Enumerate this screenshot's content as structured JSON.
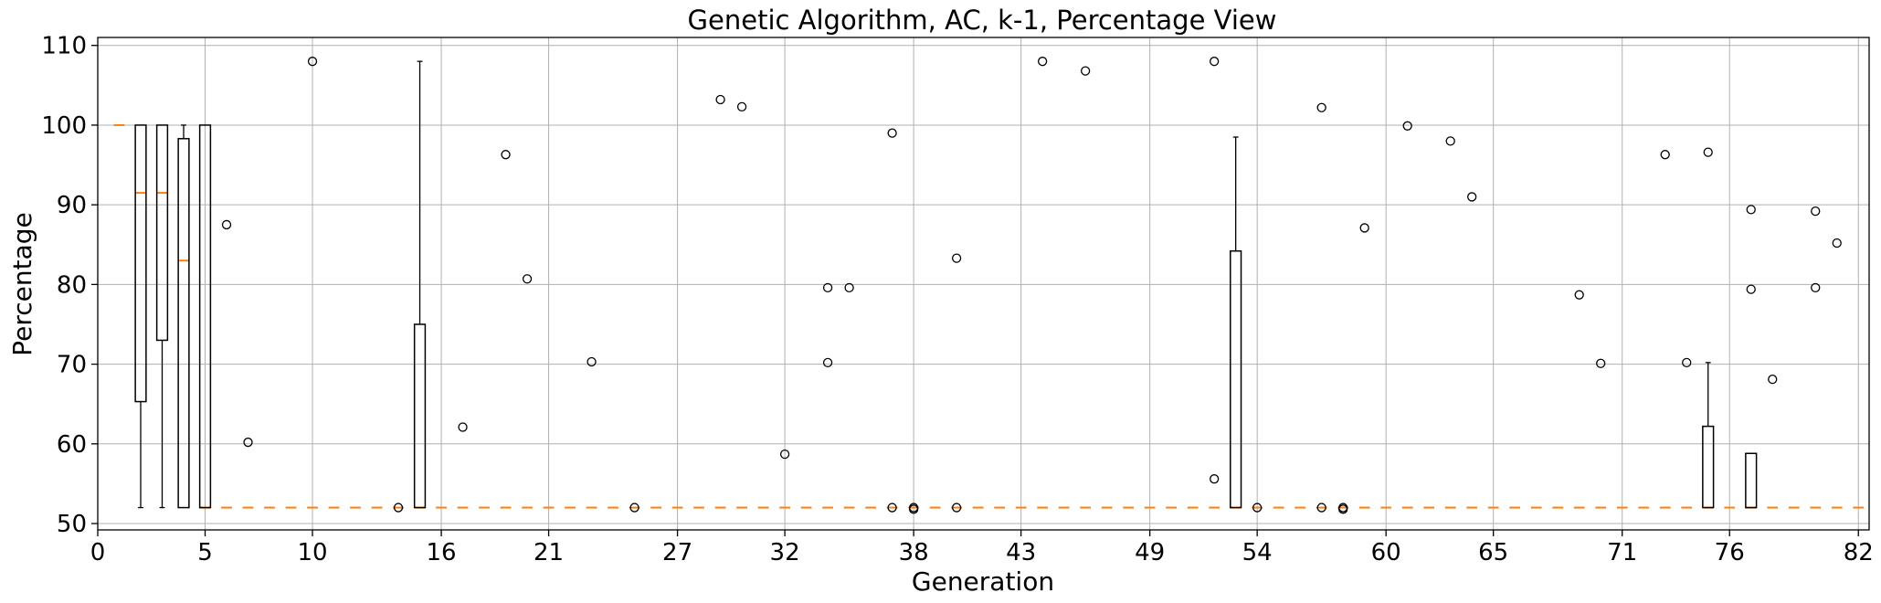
{
  "chart_data": {
    "type": "box",
    "title": "Genetic Algorithm, AC, k-1, Percentage View",
    "xlabel": "Generation",
    "ylabel": "Percentage",
    "xlim": [
      0,
      82.5
    ],
    "ylim": [
      49.2,
      111
    ],
    "grid": true,
    "x_tick_labels": [
      "0",
      "5",
      "10",
      "16",
      "21",
      "27",
      "32",
      "38",
      "43",
      "49",
      "54",
      "60",
      "65",
      "71",
      "76",
      "82"
    ],
    "y_tick_labels": [
      "50",
      "60",
      "70",
      "80",
      "90",
      "100",
      "110"
    ],
    "boxes": [
      {
        "generation": 1,
        "median": 100
      },
      {
        "generation": 2,
        "q1": 65.3,
        "median": 91.5,
        "q3": 100,
        "whisker_low": 52,
        "whisker_high": 100
      },
      {
        "generation": 3,
        "q1": 73,
        "median": 91.5,
        "q3": 100,
        "whisker_low": 52,
        "whisker_high": 100
      },
      {
        "generation": 4,
        "q1": 52,
        "median": 83,
        "q3": 98.3,
        "whisker_low": 52,
        "whisker_high": 100
      },
      {
        "generation": 5,
        "q1": 52,
        "median": 52,
        "q3": 100,
        "whisker_low": 52,
        "whisker_high": 100
      },
      {
        "generation": 15,
        "q1": 52,
        "median": 52,
        "q3": 75,
        "whisker_low": 52,
        "whisker_high": 108
      },
      {
        "generation": 53,
        "q1": 52,
        "median": 52,
        "q3": 84.2,
        "whisker_low": 52,
        "whisker_high": 98.5
      },
      {
        "generation": 75,
        "q1": 52,
        "median": 52,
        "q3": 62.2,
        "whisker_low": 52,
        "whisker_high": 70.2
      },
      {
        "generation": 77,
        "q1": 52,
        "median": 52,
        "q3": 58.8,
        "whisker_low": 52,
        "whisker_high": 58.8
      }
    ],
    "median_default": 52,
    "outliers": [
      {
        "x": 6,
        "y": 87.5
      },
      {
        "x": 7,
        "y": 60.2
      },
      {
        "x": 10,
        "y": 108
      },
      {
        "x": 14,
        "y": 52
      },
      {
        "x": 17,
        "y": 62.1
      },
      {
        "x": 19,
        "y": 96.3
      },
      {
        "x": 20,
        "y": 80.7
      },
      {
        "x": 23,
        "y": 70.3
      },
      {
        "x": 25,
        "y": 52
      },
      {
        "x": 29,
        "y": 103.2
      },
      {
        "x": 30,
        "y": 102.3
      },
      {
        "x": 32,
        "y": 58.7
      },
      {
        "x": 34,
        "y": 79.6
      },
      {
        "x": 34,
        "y": 70.2
      },
      {
        "x": 35,
        "y": 79.6
      },
      {
        "x": 37,
        "y": 99
      },
      {
        "x": 37,
        "y": 52
      },
      {
        "x": 38,
        "y": 52
      },
      {
        "x": 38,
        "y": 51.8
      },
      {
        "x": 40,
        "y": 83.3
      },
      {
        "x": 40,
        "y": 52
      },
      {
        "x": 44,
        "y": 108
      },
      {
        "x": 46,
        "y": 106.8
      },
      {
        "x": 52,
        "y": 108
      },
      {
        "x": 52,
        "y": 55.6
      },
      {
        "x": 54,
        "y": 52
      },
      {
        "x": 57,
        "y": 102.2
      },
      {
        "x": 57,
        "y": 52
      },
      {
        "x": 58,
        "y": 52
      },
      {
        "x": 58,
        "y": 51.8
      },
      {
        "x": 59,
        "y": 87.1
      },
      {
        "x": 61,
        "y": 99.9
      },
      {
        "x": 63,
        "y": 98
      },
      {
        "x": 64,
        "y": 91
      },
      {
        "x": 69,
        "y": 78.7
      },
      {
        "x": 70,
        "y": 70.1
      },
      {
        "x": 73,
        "y": 96.3
      },
      {
        "x": 74,
        "y": 70.2
      },
      {
        "x": 75,
        "y": 96.6
      },
      {
        "x": 77,
        "y": 89.4
      },
      {
        "x": 77,
        "y": 79.4
      },
      {
        "x": 78,
        "y": 68.1
      },
      {
        "x": 80,
        "y": 89.2
      },
      {
        "x": 80,
        "y": 79.6
      },
      {
        "x": 81,
        "y": 85.2
      }
    ],
    "colors": {
      "box": "#000000",
      "median": "#ff7f0e",
      "grid": "#b0b0b0",
      "outlier": "#000000"
    }
  }
}
